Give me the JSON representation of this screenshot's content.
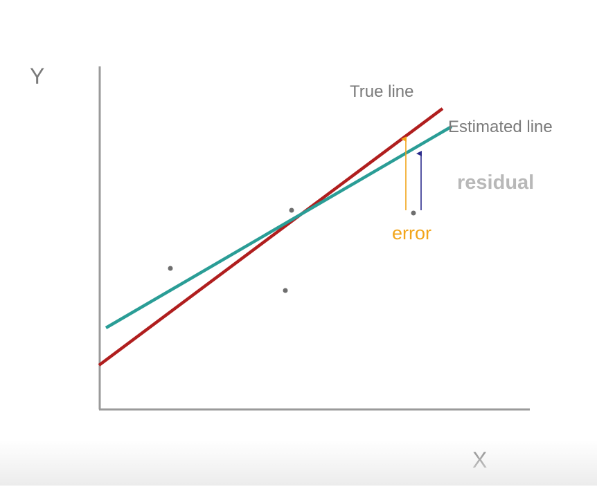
{
  "axes": {
    "y_label": "Y",
    "x_label": "X"
  },
  "labels": {
    "true_line": "True line",
    "estimated_line": "Estimated line",
    "residual": "residual",
    "error": "error"
  },
  "colors": {
    "true_line": "#b01e1e",
    "estimated_line": "#2a9d96",
    "error_arrow": "#f2a51a",
    "residual_arrow": "#2c2c8c",
    "axis": "#9a9a9a",
    "points": "#6e6e6e",
    "label_text": "#7a7a7a",
    "residual_text": "#b8b8b8",
    "error_text": "#f2a51a"
  }
}
